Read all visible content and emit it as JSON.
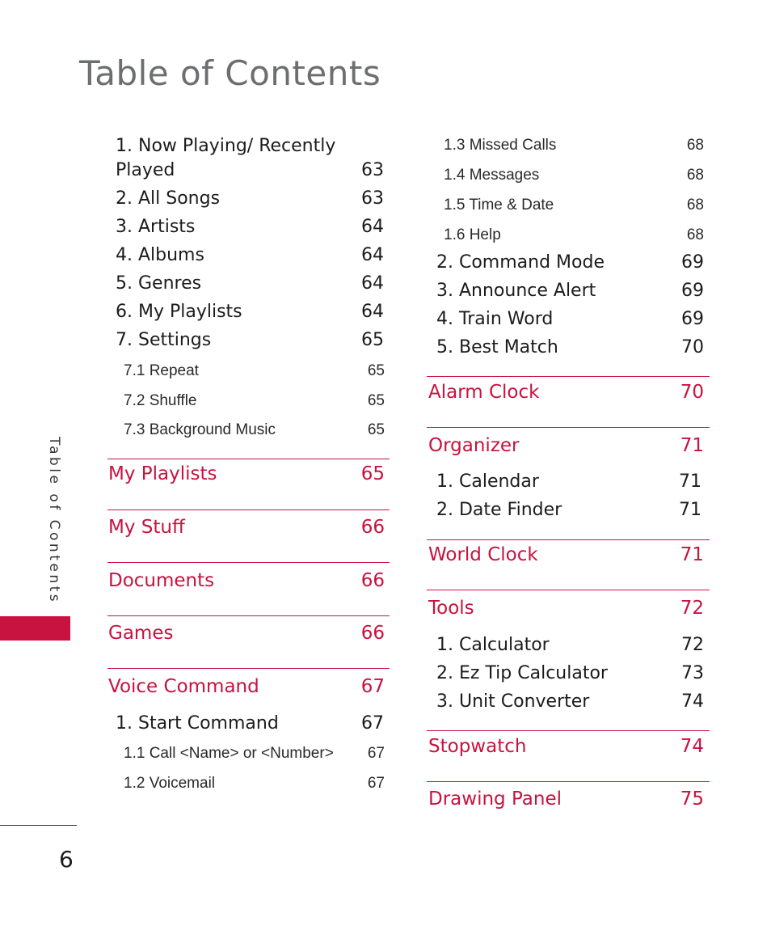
{
  "page_title": "Table of Contents",
  "side_tab_label": "Table of Contents",
  "page_number": "6",
  "colors": {
    "accent": "#c8123f",
    "title_gray": "#6d6e70"
  },
  "left_column": {
    "music_items": [
      {
        "label_line1": "1.  Now Playing/ Recently",
        "label_line2": "Played",
        "page": "63"
      },
      {
        "label": "2. All Songs",
        "page": "63"
      },
      {
        "label": "3. Artists",
        "page": "64"
      },
      {
        "label": "4. Albums",
        "page": "64"
      },
      {
        "label": "5. Genres",
        "page": "64"
      },
      {
        "label": "6. My Playlists",
        "page": "64"
      },
      {
        "label": "7. Settings",
        "page": "65"
      }
    ],
    "settings_subitems": [
      {
        "label": "7.1  Repeat",
        "page": "65"
      },
      {
        "label": "7.2  Shuffle",
        "page": "65"
      },
      {
        "label": "7.3  Background Music",
        "page": "65"
      }
    ],
    "sections": [
      {
        "label": "My Playlists",
        "page": "65"
      },
      {
        "label": "My Stuff",
        "page": "66"
      },
      {
        "label": "Documents",
        "page": "66"
      },
      {
        "label": "Games",
        "page": "66"
      },
      {
        "label": "Voice Command",
        "page": "67"
      }
    ],
    "voice_items": [
      {
        "label": "1. Start Command",
        "page": "67"
      }
    ],
    "voice_subitems": [
      {
        "label": "1.1   Call <Name> or <Number>",
        "page": "67"
      },
      {
        "label": "1.2  Voicemail",
        "page": "67"
      }
    ]
  },
  "right_column": {
    "voice_subitems_cont": [
      {
        "label": "1.3  Missed Calls",
        "page": "68"
      },
      {
        "label": "1.4  Messages",
        "page": "68"
      },
      {
        "label": "1.5  Time & Date",
        "page": "68"
      },
      {
        "label": "1.6  Help",
        "page": "68"
      }
    ],
    "voice_items_cont": [
      {
        "label": "2. Command Mode",
        "page": "69"
      },
      {
        "label": "3. Announce Alert",
        "page": "69"
      },
      {
        "label": "4. Train Word",
        "page": "69"
      },
      {
        "label": "5. Best Match",
        "page": "70"
      }
    ],
    "sections": [
      {
        "label": "Alarm Clock",
        "page": "70"
      },
      {
        "label": "Organizer",
        "page": "71"
      },
      {
        "label": "World Clock",
        "page": "71"
      },
      {
        "label": "Tools",
        "page": "72"
      },
      {
        "label": "Stopwatch",
        "page": "74"
      },
      {
        "label": "Drawing Panel",
        "page": "75"
      }
    ],
    "organizer_items": [
      {
        "label": "1. Calendar",
        "page": "71"
      },
      {
        "label": "2. Date Finder",
        "page": "71"
      }
    ],
    "tools_items": [
      {
        "label": "1. Calculator",
        "page": "72"
      },
      {
        "label": "2. Ez Tip Calculator",
        "page": "73"
      },
      {
        "label": "3. Unit Converter",
        "page": "74"
      }
    ]
  }
}
